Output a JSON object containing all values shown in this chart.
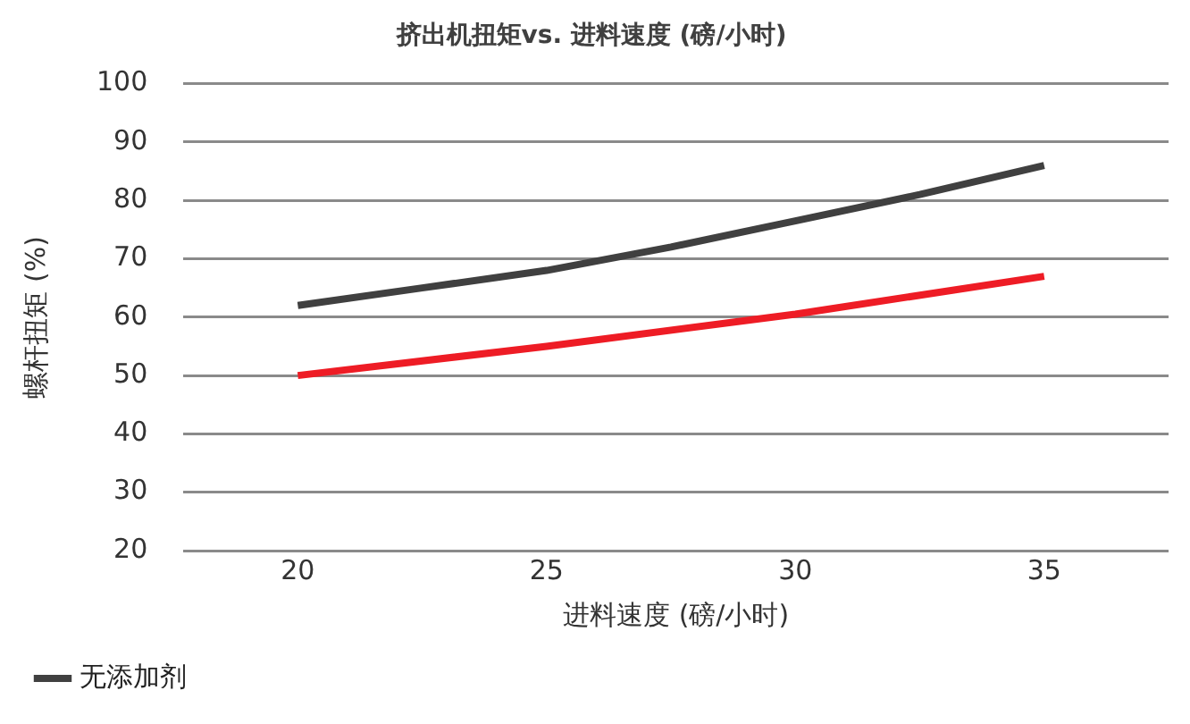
{
  "chart_data": {
    "type": "line",
    "title": "挤出机扭矩vs. 进料速度 (磅/小时)",
    "xlabel": "进料速度 (磅/小时)",
    "ylabel": "螺杆扭矩 (%)",
    "series": [
      {
        "name": "无添加剂",
        "color": "#404040",
        "x": [
          20,
          22.5,
          25,
          27.5,
          30,
          32.5,
          35
        ],
        "values": [
          62,
          65,
          68,
          72,
          76.5,
          81,
          86
        ]
      },
      {
        "color": "#ee1c25",
        "x": [
          20,
          25,
          30,
          35
        ],
        "values": [
          50,
          55,
          60.5,
          67
        ]
      }
    ],
    "xlim": [
      17.7,
      37.5
    ],
    "xticks": [
      20,
      25,
      30,
      35
    ],
    "ylim": [
      20,
      100
    ],
    "yticks": [
      20,
      30,
      40,
      50,
      60,
      70,
      80,
      90,
      100
    ],
    "grid": "y",
    "legend": "bottom",
    "marker": "none",
    "line_style": "solid"
  }
}
